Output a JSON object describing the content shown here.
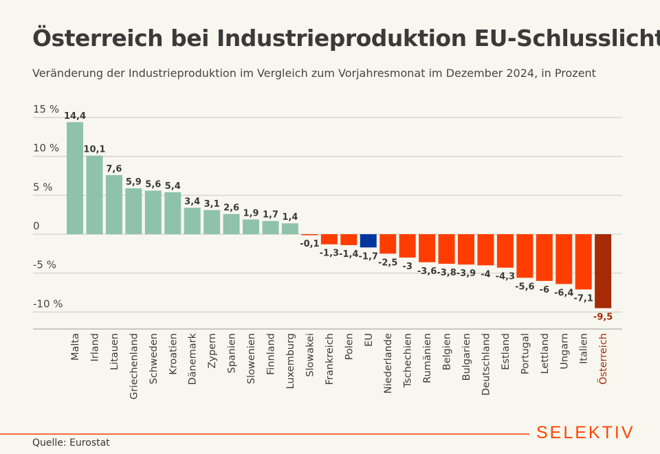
{
  "title": "Österreich bei Industrieproduktion EU-Schlusslicht",
  "subtitle": "Veränderung der Industrieproduktion im Vergleich zum Vorjahresmonat im Dezember 2024, in Prozent",
  "source": "Quelle: Eurostat",
  "logo": "SELEKTIV",
  "colors": {
    "positive": "#8fc3a9",
    "negative": "#ff3d00",
    "eu": "#00359c",
    "highlight": "#a52a05",
    "background": "#f8f7ef"
  },
  "chart_data": {
    "type": "bar",
    "title": "Österreich bei Industrieproduktion EU-Schlusslicht",
    "subtitle": "Veränderung der Industrieproduktion im Vergleich zum Vorjahresmonat im Dezember 2024, in Prozent",
    "categories": [
      "Malta",
      "Irland",
      "Litauen",
      "Griechenland",
      "Schweden",
      "Kroatien",
      "Dänemark",
      "Zypern",
      "Spanien",
      "Slowenien",
      "Finnland",
      "Luxemburg",
      "Slowakei",
      "Frankreich",
      "Polen",
      "EU",
      "Niederlande",
      "Tschechien",
      "Rumänien",
      "Belgien",
      "Bulgarien",
      "Deutschland",
      "Estland",
      "Portugal",
      "Lettland",
      "Ungarn",
      "Italien",
      "Österreich"
    ],
    "values": [
      14.4,
      10.1,
      7.6,
      5.9,
      5.6,
      5.4,
      3.4,
      3.1,
      2.6,
      1.9,
      1.7,
      1.4,
      -0.1,
      -1.3,
      -1.4,
      -1.7,
      -2.5,
      -3,
      -3.6,
      -3.8,
      -3.9,
      -4,
      -4.3,
      -5.6,
      -6,
      -6.4,
      -7.1,
      -9.5
    ],
    "value_labels": [
      "14,4",
      "10,1",
      "7,6",
      "5,9",
      "5,6",
      "5,4",
      "3,4",
      "3,1",
      "2,6",
      "1,9",
      "1,7",
      "1,4",
      "-0,1",
      "-1,3",
      "-1,4",
      "-1,7",
      "-2,5",
      "-3",
      "-3,6",
      "-3,8",
      "-3,9",
      "-4",
      "-4,3",
      "-5,6",
      "-6",
      "-6,4",
      "-7,1",
      "-9,5"
    ],
    "yticks": [
      15,
      10,
      5,
      0,
      -5,
      -10
    ],
    "ytick_labels": [
      "15 %",
      "10 %",
      "5 %",
      "0",
      "-5 %",
      "-10 %"
    ],
    "ylim": [
      -12,
      15
    ],
    "grid": true,
    "highlight": "Österreich"
  }
}
